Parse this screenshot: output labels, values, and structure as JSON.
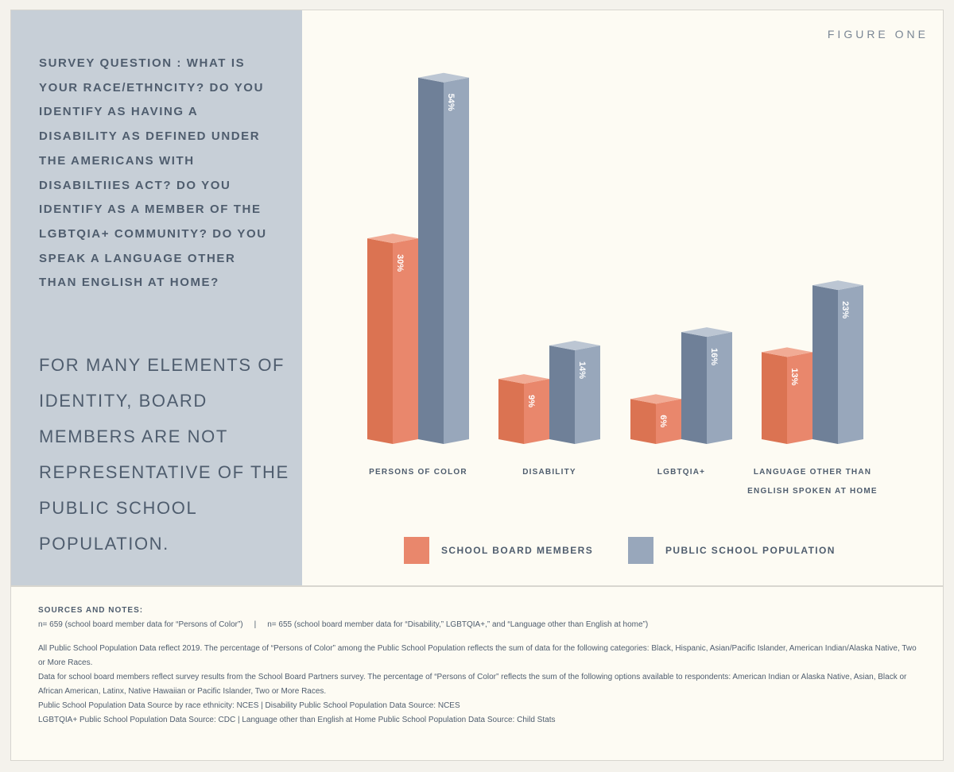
{
  "figure_label": "FIGURE ONE",
  "survey_question": "SURVEY QUESTION : WHAT IS YOUR RACE/ETHNCITY? DO YOU IDENTIFY AS HAVING A DISABILITY AS DEFINED UNDER THE AMERICANS WITH DISABILTIIES ACT? DO YOU IDENTIFY AS A MEMBER OF THE LGBTQIA+ COMMUNITY? DO YOU SPEAK A LANGUAGE OTHER THAN ENGLISH AT HOME?",
  "headline": "FOR MANY ELEMENTS OF IDENTITY, BOARD MEMBERS ARE NOT REPRESENTATIVE OF THE PUBLIC SCHOOL POPULATION.",
  "chart_data": {
    "type": "bar",
    "categories": [
      [
        "PERSONS OF COLOR"
      ],
      [
        "DISABILITY"
      ],
      [
        "LGBTQIA+"
      ],
      [
        "LANGUAGE OTHER THAN",
        "ENGLISH SPOKEN AT HOME"
      ]
    ],
    "series": [
      {
        "name": "SCHOOL BOARD MEMBERS",
        "values": [
          30,
          9,
          6,
          13
        ],
        "labels": [
          "30%",
          "9%",
          "6%",
          "13%"
        ],
        "colors": {
          "front": "#e9876c",
          "side": "#db7352",
          "top": "#f1ab95"
        }
      },
      {
        "name": "PUBLIC SCHOOL POPULATION",
        "values": [
          54,
          14,
          16,
          23
        ],
        "labels": [
          "54%",
          "14%",
          "16%",
          "23%"
        ],
        "colors": {
          "front": "#98a7bb",
          "side": "#6f8098",
          "top": "#bcc6d3"
        }
      }
    ],
    "ylim": [
      0,
      54
    ]
  },
  "notes": {
    "heading": "SOURCES AND NOTES:",
    "n_line_1": "n= 659 (school board member data for “Persons of Color”)",
    "n_separator": "|",
    "n_line_2": "n= 655 (school board member data for “Disability,” LGBTQIA+,” and “Language other than English at home”)",
    "paragraphs": [
      "All Public School Population Data reflect 2019. The percentage of “Persons of Color” among the Public School Population reflects the sum of data for the following categories: Black, Hispanic, Asian/Pacific Islander, American Indian/Alaska Native, Two or More Races.",
      "Data for school board members reflect survey results from the School Board Partners survey. The percentage of “Persons of Color” reflects the sum of the following options available to respondents: American Indian or Alaska Native, Asian, Black or African American, Latinx, Native Hawaiian or Pacific Islander, Two or More Races.",
      "Public School Population Data Source by race ethnicity: NCES  |  Disability Public School Population Data Source: NCES",
      "LGBTQIA+ Public School Population Data Source: CDC  |  Language other than English at Home Public School Population Data Source: Child Stats"
    ]
  }
}
